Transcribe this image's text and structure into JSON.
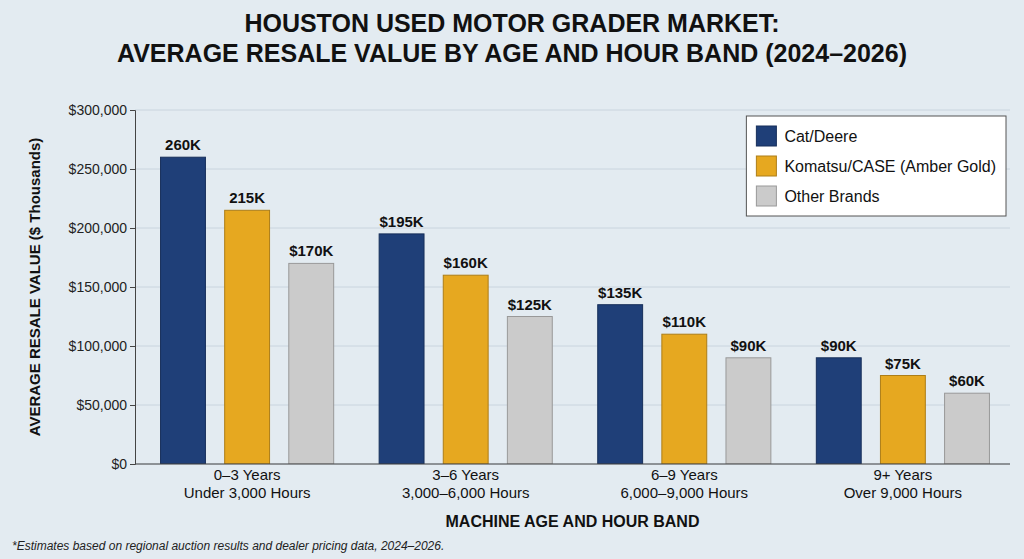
{
  "chart_data": {
    "type": "bar",
    "title": "HOUSTON USED MOTOR GRADER MARKET:\nAVERAGE RESALE VALUE BY AGE AND HOUR BAND (2024–2026)",
    "x_label": "MACHINE AGE AND HOUR BAND",
    "y_label": "AVERAGE RESALE VALUE ($ Thousands)",
    "footnote": "*Estimates based on regional auction results and dealer pricing data, 2024–2026.",
    "categories": [
      "0–3 Years\nUnder 3,000 Hours",
      "3–6 Years\n3,000–6,000 Hours",
      "6–9 Years\n6,000–9,000 Hours",
      "9+ Years\nOver 9,000 Hours"
    ],
    "series": [
      {
        "name": "Cat/Deere",
        "color": "#1f3f78",
        "values": [
          260000,
          195000,
          135000,
          90000
        ],
        "value_labels": [
          "260K",
          "$195K",
          "$135K",
          "$90K"
        ]
      },
      {
        "name": "Komatsu/CASE (Amber Gold)",
        "color": "#e6a820",
        "values": [
          215000,
          160000,
          110000,
          75000
        ],
        "value_labels": [
          "215K",
          "$160K",
          "$110K",
          "$75K"
        ]
      },
      {
        "name": "Other Brands",
        "color": "#cbcbcb",
        "values": [
          170000,
          125000,
          90000,
          60000
        ],
        "value_labels": [
          "$170K",
          "$125K",
          "$90K",
          "$60K"
        ]
      }
    ],
    "ylim": [
      0,
      300000
    ],
    "yticks": [
      {
        "value": 0,
        "label": "$0"
      },
      {
        "value": 50000,
        "label": "$50,000"
      },
      {
        "value": 100000,
        "label": "$100,000"
      },
      {
        "value": 150000,
        "label": "$150,000"
      },
      {
        "value": 200000,
        "label": "$200,000"
      },
      {
        "value": 250000,
        "label": "$250,000"
      },
      {
        "value": 300000,
        "label": "$300,000"
      }
    ],
    "grid": true,
    "legend": "top-right",
    "data_labels": true
  }
}
